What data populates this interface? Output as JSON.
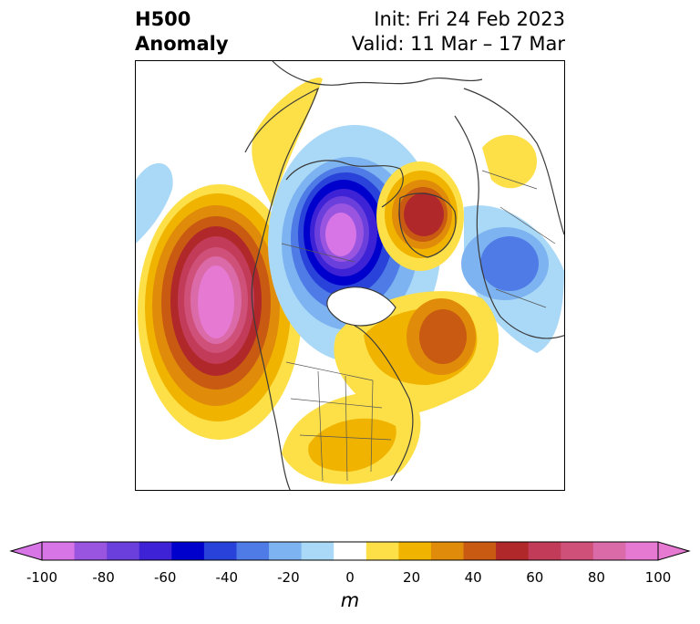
{
  "header": {
    "title_line1": "H500",
    "title_line2": "Anomaly",
    "init": "Init: Fri 24 Feb 2023",
    "valid": "Valid: 11 Mar – 17 Mar"
  },
  "colorbar": {
    "ticks": [
      "-100",
      "-80",
      "-60",
      "-40",
      "-20",
      "0",
      "20",
      "40",
      "60",
      "80",
      "100"
    ],
    "unit": "m",
    "colors": [
      "#d774e6",
      "#9a55e0",
      "#6b3fdc",
      "#3d22d6",
      "#0000cc",
      "#2942d9",
      "#4e7be6",
      "#7db3f0",
      "#aad8f7",
      "#ffffff",
      "#fde047",
      "#f0b400",
      "#e08c0a",
      "#c85a12",
      "#b0282a",
      "#c23c5a",
      "#cf5078",
      "#db6aa8",
      "#e679d2"
    ]
  },
  "map": {
    "type": "geopotential height anomaly",
    "level": "500 hPa",
    "features": [
      "positive-anomaly-pacific",
      "negative-anomaly-arctic-canada",
      "positive-anomaly-greenland-sea",
      "negative-anomaly-siberia",
      "positive-anomaly-north-atlantic",
      "positive-anomaly-eastern-us"
    ]
  }
}
